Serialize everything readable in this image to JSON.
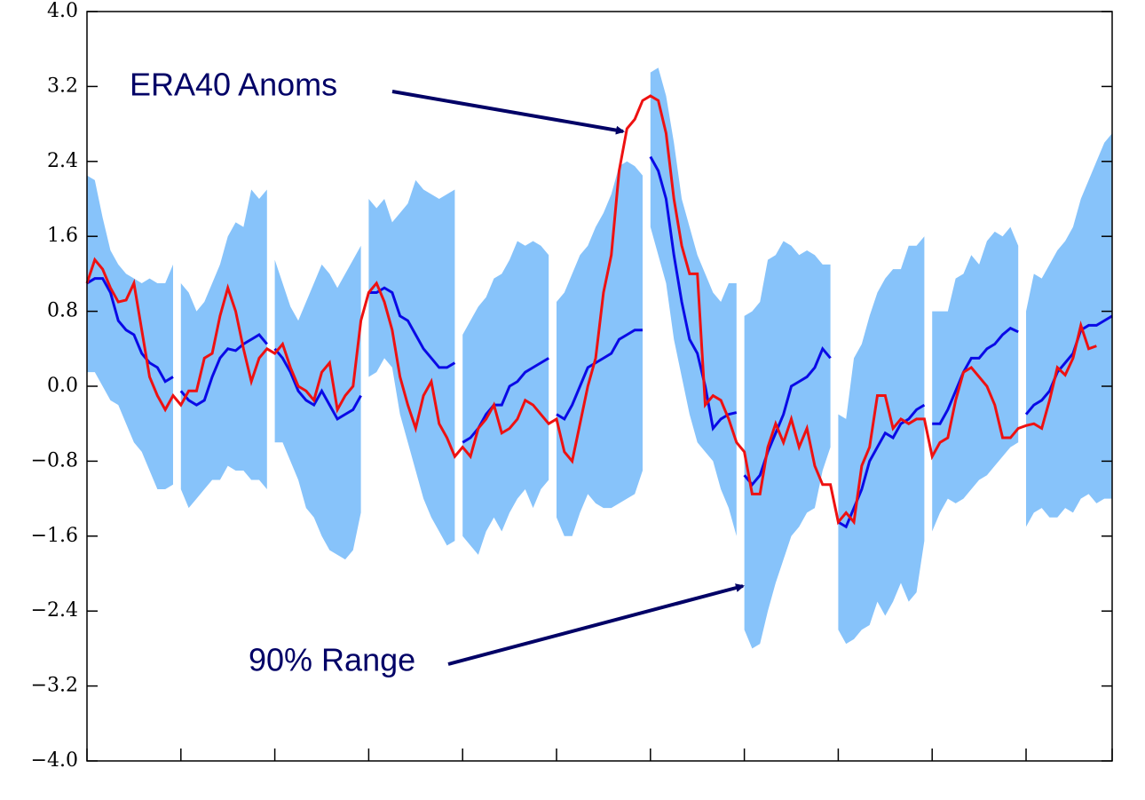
{
  "chart_data": {
    "type": "line",
    "annotations": [
      "ERA40 Anoms",
      "90% Range"
    ],
    "xlim": [
      0,
      131
    ],
    "ylim": [
      -4,
      4
    ],
    "xticks": [
      0,
      12,
      24,
      36,
      48,
      60,
      72,
      84,
      96,
      108,
      120,
      131
    ],
    "yticks": [
      {
        "value": 4,
        "label": "4.0"
      },
      {
        "value": 3.2,
        "label": "3.2"
      },
      {
        "value": 2.4,
        "label": "2.4"
      },
      {
        "value": 1.6,
        "label": "1.6"
      },
      {
        "value": 0.8,
        "label": "0.8"
      },
      {
        "value": 0,
        "label": "0.0"
      },
      {
        "value": -0.8,
        "label": "−0.8"
      },
      {
        "value": -1.6,
        "label": "−1.6"
      },
      {
        "value": -2.4,
        "label": "−2.4"
      },
      {
        "value": -3.2,
        "label": "−3.2"
      },
      {
        "value": -4,
        "label": "−4.0"
      }
    ],
    "band_color": "#87c3fa",
    "mean_color": "#0a0ae6",
    "obs_color": "#ee1111",
    "annotation_color": "#000066",
    "forecasts": [
      {
        "x": [
          0,
          1,
          2,
          3,
          4,
          5,
          6,
          7,
          8,
          9,
          10,
          11
        ],
        "upper": [
          2.25,
          2.2,
          1.8,
          1.45,
          1.3,
          1.2,
          1.15,
          1.1,
          1.15,
          1.1,
          1.1,
          1.3
        ],
        "lower": [
          0.15,
          0.15,
          0.0,
          -0.15,
          -0.2,
          -0.4,
          -0.6,
          -0.7,
          -0.9,
          -1.1,
          -1.1,
          -1.05
        ],
        "mean": [
          1.1,
          1.15,
          1.15,
          1.0,
          0.7,
          0.6,
          0.55,
          0.35,
          0.25,
          0.2,
          0.05,
          0.1
        ]
      },
      {
        "x": [
          12,
          13,
          14,
          15,
          16,
          17,
          18,
          19,
          20,
          21,
          22,
          23
        ],
        "upper": [
          1.1,
          1.0,
          0.8,
          0.9,
          1.1,
          1.3,
          1.6,
          1.75,
          1.7,
          2.1,
          2.0,
          2.1
        ],
        "lower": [
          -1.1,
          -1.3,
          -1.2,
          -1.1,
          -1.0,
          -1.0,
          -0.85,
          -0.9,
          -0.9,
          -1.0,
          -1.0,
          -1.1
        ],
        "mean": [
          -0.05,
          -0.15,
          -0.2,
          -0.15,
          0.1,
          0.3,
          0.4,
          0.38,
          0.45,
          0.5,
          0.55,
          0.45
        ]
      },
      {
        "x": [
          24,
          25,
          26,
          27,
          28,
          29,
          30,
          31,
          32,
          33,
          34,
          35
        ],
        "upper": [
          1.35,
          1.1,
          0.85,
          0.7,
          0.9,
          1.1,
          1.3,
          1.2,
          1.05,
          1.2,
          1.35,
          1.5
        ],
        "lower": [
          -0.6,
          -0.6,
          -0.8,
          -1.0,
          -1.3,
          -1.4,
          -1.6,
          -1.75,
          -1.8,
          -1.85,
          -1.75,
          -1.35
        ],
        "mean": [
          0.4,
          0.3,
          0.15,
          -0.05,
          -0.15,
          -0.2,
          -0.05,
          -0.2,
          -0.35,
          -0.3,
          -0.25,
          -0.1
        ]
      },
      {
        "x": [
          36,
          37,
          38,
          39,
          40,
          41,
          42,
          43,
          44,
          45,
          46,
          47
        ],
        "upper": [
          2.0,
          1.9,
          2.0,
          1.75,
          1.85,
          1.95,
          2.2,
          2.1,
          2.05,
          2.0,
          2.05,
          2.1
        ],
        "lower": [
          0.1,
          0.15,
          0.3,
          0.2,
          -0.3,
          -0.6,
          -0.9,
          -1.2,
          -1.4,
          -1.55,
          -1.7,
          -1.65
        ],
        "mean": [
          1.0,
          1.0,
          1.05,
          1.0,
          0.75,
          0.7,
          0.55,
          0.4,
          0.3,
          0.2,
          0.2,
          0.25
        ]
      },
      {
        "x": [
          48,
          49,
          50,
          51,
          52,
          53,
          54,
          55,
          56,
          57,
          58,
          59
        ],
        "upper": [
          0.55,
          0.7,
          0.85,
          0.95,
          1.15,
          1.2,
          1.35,
          1.55,
          1.5,
          1.55,
          1.5,
          1.4
        ],
        "lower": [
          -1.6,
          -1.7,
          -1.8,
          -1.55,
          -1.4,
          -1.55,
          -1.35,
          -1.2,
          -1.1,
          -1.3,
          -1.1,
          -1.0
        ],
        "mean": [
          -0.6,
          -0.55,
          -0.45,
          -0.3,
          -0.2,
          -0.2,
          0.0,
          0.05,
          0.15,
          0.2,
          0.25,
          0.3
        ]
      },
      {
        "x": [
          60,
          61,
          62,
          63,
          64,
          65,
          66,
          67,
          68,
          69,
          70,
          71
        ],
        "upper": [
          0.9,
          1.0,
          1.2,
          1.4,
          1.5,
          1.7,
          1.85,
          2.05,
          2.35,
          2.4,
          2.35,
          2.25
        ],
        "lower": [
          -1.4,
          -1.6,
          -1.6,
          -1.35,
          -1.15,
          -1.25,
          -1.3,
          -1.3,
          -1.25,
          -1.2,
          -1.15,
          -0.9
        ],
        "mean": [
          -0.3,
          -0.35,
          -0.2,
          0.0,
          0.2,
          0.25,
          0.3,
          0.35,
          0.5,
          0.55,
          0.6,
          0.6
        ]
      },
      {
        "x": [
          72,
          73,
          74,
          75,
          76,
          77,
          78,
          79,
          80,
          81,
          82,
          83
        ],
        "upper": [
          3.35,
          3.4,
          3.1,
          2.6,
          2.0,
          1.7,
          1.4,
          1.2,
          1.0,
          0.9,
          1.1,
          1.1
        ],
        "lower": [
          1.7,
          1.4,
          1.1,
          0.5,
          0.1,
          -0.3,
          -0.6,
          -0.7,
          -0.8,
          -1.1,
          -1.3,
          -1.6
        ],
        "mean": [
          2.45,
          2.3,
          2.0,
          1.4,
          0.9,
          0.5,
          0.35,
          0.0,
          -0.45,
          -0.35,
          -0.3,
          -0.28
        ]
      },
      {
        "x": [
          84,
          85,
          86,
          87,
          88,
          89,
          90,
          91,
          92,
          93,
          94,
          95
        ],
        "upper": [
          0.75,
          0.8,
          0.9,
          1.35,
          1.4,
          1.55,
          1.5,
          1.4,
          1.45,
          1.4,
          1.3,
          1.3
        ],
        "lower": [
          -2.6,
          -2.8,
          -2.75,
          -2.4,
          -2.1,
          -1.85,
          -1.6,
          -1.5,
          -1.35,
          -1.3,
          -0.9,
          -0.65
        ],
        "mean": [
          -0.95,
          -1.05,
          -0.95,
          -0.7,
          -0.5,
          -0.3,
          0.0,
          0.05,
          0.1,
          0.2,
          0.4,
          0.3
        ]
      },
      {
        "x": [
          96,
          97,
          98,
          99,
          100,
          101,
          102,
          103,
          104,
          105,
          106,
          107
        ],
        "upper": [
          -0.3,
          -0.35,
          0.3,
          0.45,
          0.75,
          1.0,
          1.15,
          1.25,
          1.25,
          1.5,
          1.5,
          1.6
        ],
        "lower": [
          -2.6,
          -2.75,
          -2.7,
          -2.6,
          -2.55,
          -2.3,
          -2.45,
          -2.3,
          -2.1,
          -2.3,
          -2.2,
          -1.65
        ],
        "mean": [
          -1.45,
          -1.5,
          -1.3,
          -1.1,
          -0.8,
          -0.65,
          -0.5,
          -0.55,
          -0.4,
          -0.35,
          -0.25,
          -0.2
        ]
      },
      {
        "x": [
          108,
          109,
          110,
          111,
          112,
          113,
          114,
          115,
          116,
          117,
          118,
          119
        ],
        "upper": [
          0.8,
          0.8,
          0.8,
          1.15,
          1.2,
          1.4,
          1.3,
          1.55,
          1.65,
          1.6,
          1.7,
          1.5
        ],
        "lower": [
          -1.55,
          -1.35,
          -1.2,
          -1.25,
          -1.2,
          -1.1,
          -1.0,
          -0.95,
          -0.85,
          -0.75,
          -0.65,
          -0.6
        ],
        "mean": [
          -0.4,
          -0.4,
          -0.25,
          -0.05,
          0.15,
          0.3,
          0.3,
          0.4,
          0.45,
          0.55,
          0.62,
          0.58
        ]
      },
      {
        "x": [
          120,
          121,
          122,
          123,
          124,
          125,
          126,
          127,
          128,
          129,
          130,
          131
        ],
        "upper": [
          0.8,
          1.2,
          1.15,
          1.3,
          1.45,
          1.55,
          1.7,
          2.0,
          2.2,
          2.4,
          2.6,
          2.7
        ],
        "lower": [
          -1.5,
          -1.35,
          -1.3,
          -1.4,
          -1.4,
          -1.3,
          -1.35,
          -1.2,
          -1.15,
          -1.25,
          -1.2,
          -1.2
        ],
        "mean": [
          -0.3,
          -0.2,
          -0.15,
          -0.05,
          0.15,
          0.25,
          0.35,
          0.6,
          0.65,
          0.65,
          0.7,
          0.75
        ]
      }
    ],
    "observed": {
      "x": [
        0,
        1,
        2,
        3,
        4,
        5,
        6,
        7,
        8,
        9,
        10,
        11,
        12,
        13,
        14,
        15,
        16,
        17,
        18,
        19,
        20,
        21,
        22,
        23,
        24,
        25,
        26,
        27,
        28,
        29,
        30,
        31,
        32,
        33,
        34,
        35,
        36,
        37,
        38,
        39,
        40,
        41,
        42,
        43,
        44,
        45,
        46,
        47,
        48,
        49,
        50,
        51,
        52,
        53,
        54,
        55,
        56,
        57,
        58,
        59,
        60,
        61,
        62,
        63,
        64,
        65,
        66,
        67,
        68,
        69,
        70,
        71,
        72,
        73,
        74,
        75,
        76,
        77,
        78,
        79,
        80,
        81,
        82,
        83,
        84,
        85,
        86,
        87,
        88,
        89,
        90,
        91,
        92,
        93,
        94,
        95,
        96,
        97,
        98,
        99,
        100,
        101,
        102,
        103,
        104,
        105,
        106,
        107,
        108,
        109,
        110,
        111,
        112,
        113,
        114,
        115,
        116,
        117,
        118,
        119,
        120,
        121,
        122,
        123,
        124,
        125,
        126,
        127,
        128,
        129
      ],
      "values": [
        1.1,
        1.35,
        1.25,
        1.05,
        0.9,
        0.92,
        1.1,
        0.6,
        0.1,
        -0.1,
        -0.25,
        -0.1,
        -0.2,
        -0.05,
        -0.05,
        0.3,
        0.35,
        0.75,
        1.05,
        0.8,
        0.4,
        0.05,
        0.3,
        0.4,
        0.35,
        0.45,
        0.2,
        0.0,
        -0.05,
        -0.15,
        0.15,
        0.25,
        -0.25,
        -0.1,
        0.0,
        0.7,
        1.0,
        1.1,
        0.9,
        0.6,
        0.1,
        -0.2,
        -0.45,
        -0.1,
        0.05,
        -0.4,
        -0.55,
        -0.75,
        -0.65,
        -0.75,
        -0.45,
        -0.35,
        -0.2,
        -0.5,
        -0.45,
        -0.35,
        -0.15,
        -0.2,
        -0.3,
        -0.4,
        -0.35,
        -0.7,
        -0.8,
        -0.4,
        0.0,
        0.3,
        1.0,
        1.4,
        2.3,
        2.75,
        2.85,
        3.05,
        3.1,
        3.05,
        2.7,
        2.0,
        1.5,
        1.2,
        1.2,
        -0.2,
        -0.1,
        -0.15,
        -0.35,
        -0.6,
        -0.7,
        -1.15,
        -1.15,
        -0.65,
        -0.4,
        -0.6,
        -0.35,
        -0.65,
        -0.45,
        -0.85,
        -1.05,
        -1.05,
        -1.45,
        -1.35,
        -1.45,
        -0.85,
        -0.65,
        -0.1,
        -0.1,
        -0.45,
        -0.35,
        -0.4,
        -0.35,
        -0.35,
        -0.75,
        -0.6,
        -0.55,
        -0.15,
        0.15,
        0.2,
        0.1,
        0.0,
        -0.2,
        -0.55,
        -0.55,
        -0.45,
        -0.42,
        -0.4,
        -0.45,
        -0.15,
        0.2,
        0.12,
        0.3,
        0.65,
        0.4,
        0.43
      ]
    }
  }
}
